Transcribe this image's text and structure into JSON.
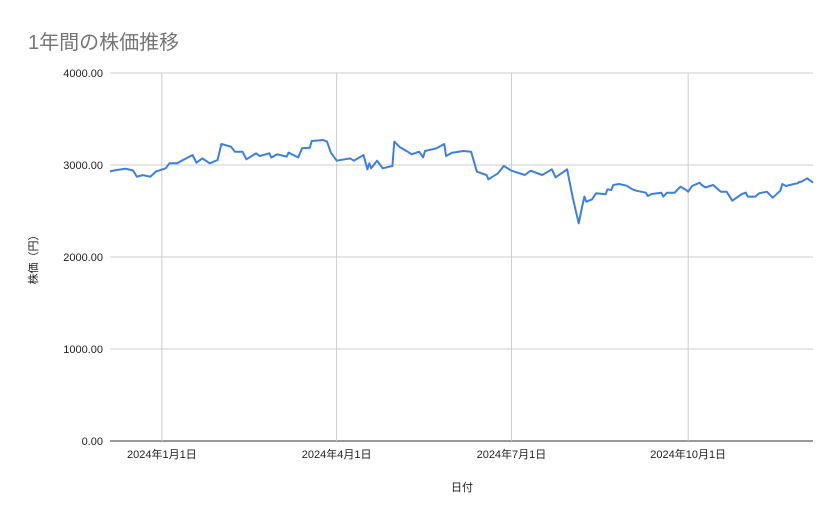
{
  "chart_data": {
    "type": "line",
    "title": "1年間の株価推移",
    "xlabel": "日付",
    "ylabel": "株価（円）",
    "xlim": [
      "2023-12-05",
      "2024-12-05"
    ],
    "ylim": [
      0,
      4000
    ],
    "grid": true,
    "legend": "none",
    "line_color": "#3f7fdc",
    "y_ticks": [
      "0.00",
      "1000.00",
      "2000.00",
      "3000.00",
      "4000.00"
    ],
    "x_ticks": [
      {
        "date": "2024-01-01",
        "label": "2024年1月1日"
      },
      {
        "date": "2024-04-01",
        "label": "2024年4月1日"
      },
      {
        "date": "2024-07-01",
        "label": "2024年7月1日"
      },
      {
        "date": "2024-10-01",
        "label": "2024年10月1日"
      }
    ],
    "series": [
      {
        "x": [
          "2023-12-05",
          "2023-12-08",
          "2023-12-13",
          "2023-12-17",
          "2023-12-19",
          "2023-12-22",
          "2023-12-26",
          "2023-12-29",
          "2024-01-03",
          "2024-01-05",
          "2024-01-09",
          "2024-01-12",
          "2024-01-17",
          "2024-01-19",
          "2024-01-22",
          "2024-01-26",
          "2024-01-30",
          "2024-02-01",
          "2024-02-06",
          "2024-02-08",
          "2024-02-12",
          "2024-02-14",
          "2024-02-19",
          "2024-02-21",
          "2024-02-26",
          "2024-02-27",
          "2024-03-01",
          "2024-03-06",
          "2024-03-07",
          "2024-03-12",
          "2024-03-14",
          "2024-03-18",
          "2024-03-19",
          "2024-03-25",
          "2024-03-27",
          "2024-03-29",
          "2024-04-01",
          "2024-04-08",
          "2024-04-10",
          "2024-04-15",
          "2024-04-17",
          "2024-04-18",
          "2024-04-19",
          "2024-04-22",
          "2024-04-25",
          "2024-04-30",
          "2024-05-01",
          "2024-05-04",
          "2024-05-08",
          "2024-05-10",
          "2024-05-14",
          "2024-05-16",
          "2024-05-17",
          "2024-05-23",
          "2024-05-27",
          "2024-05-28",
          "2024-05-31",
          "2024-06-06",
          "2024-06-10",
          "2024-06-13",
          "2024-06-18",
          "2024-06-19",
          "2024-06-24",
          "2024-06-27",
          "2024-07-01",
          "2024-07-08",
          "2024-07-11",
          "2024-07-17",
          "2024-07-22",
          "2024-07-24",
          "2024-07-30",
          "2024-08-02",
          "2024-08-05",
          "2024-08-07",
          "2024-08-08",
          "2024-08-09",
          "2024-08-12",
          "2024-08-14",
          "2024-08-19",
          "2024-08-20",
          "2024-08-22",
          "2024-08-23",
          "2024-08-26",
          "2024-08-30",
          "2024-09-02",
          "2024-09-04",
          "2024-09-09",
          "2024-09-10",
          "2024-09-12",
          "2024-09-17",
          "2024-09-18",
          "2024-09-20",
          "2024-09-24",
          "2024-09-27",
          "2024-09-30",
          "2024-10-01",
          "2024-10-03",
          "2024-10-07",
          "2024-10-08",
          "2024-10-10",
          "2024-10-14",
          "2024-10-18",
          "2024-10-21",
          "2024-10-24",
          "2024-10-29",
          "2024-10-31",
          "2024-11-01",
          "2024-11-05",
          "2024-11-07",
          "2024-11-11",
          "2024-11-14",
          "2024-11-18",
          "2024-11-19",
          "2024-11-21",
          "2024-11-25",
          "2024-11-27",
          "2024-11-28",
          "2024-11-29",
          "2024-12-02",
          "2024-12-05"
        ],
        "y": [
          2930,
          2945,
          2960,
          2940,
          2873,
          2890,
          2873,
          2930,
          2964,
          3018,
          3018,
          3054,
          3109,
          3025,
          3072,
          3018,
          3054,
          3228,
          3199,
          3145,
          3145,
          3062,
          3127,
          3098,
          3127,
          3080,
          3116,
          3091,
          3134,
          3083,
          3181,
          3188,
          3261,
          3272,
          3254,
          3134,
          3047,
          3072,
          3047,
          3109,
          2953,
          3018,
          2964,
          3047,
          2964,
          2989,
          3254,
          3192,
          3145,
          3116,
          3145,
          3083,
          3152,
          3181,
          3228,
          3098,
          3134,
          3152,
          3145,
          2927,
          2891,
          2845,
          2910,
          2989,
          2938,
          2891,
          2938,
          2891,
          2953,
          2866,
          2953,
          2638,
          2366,
          2565,
          2656,
          2601,
          2627,
          2692,
          2681,
          2736,
          2728,
          2783,
          2793,
          2775,
          2736,
          2721,
          2699,
          2663,
          2685,
          2699,
          2656,
          2699,
          2699,
          2765,
          2728,
          2710,
          2772,
          2808,
          2783,
          2757,
          2783,
          2710,
          2710,
          2612,
          2685,
          2699,
          2656,
          2656,
          2692,
          2710,
          2645,
          2721,
          2793,
          2772,
          2793,
          2801,
          2819,
          2819,
          2855,
          2808
        ]
      }
    ]
  }
}
